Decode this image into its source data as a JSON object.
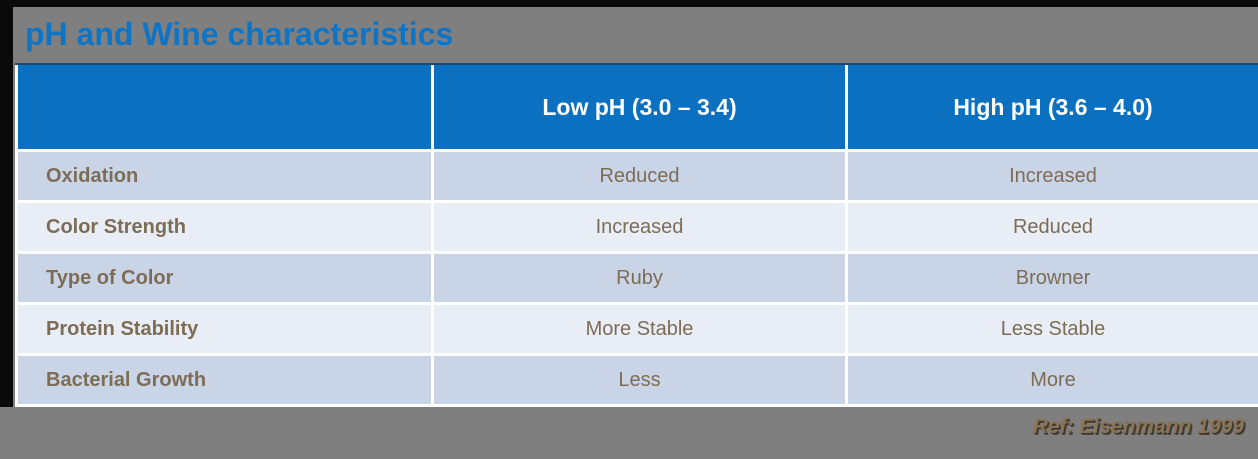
{
  "title": "pH and Wine characteristics",
  "table": {
    "columns": [
      "",
      "Low pH (3.0 – 3.4)",
      "High pH (3.6 – 4.0)"
    ],
    "rows": [
      {
        "label": "Oxidation",
        "low": "Reduced",
        "high": "Increased"
      },
      {
        "label": "Color Strength",
        "low": "Increased",
        "high": "Reduced"
      },
      {
        "label": "Type of Color",
        "low": "Ruby",
        "high": "Browner"
      },
      {
        "label": "Protein Stability",
        "low": "More Stable",
        "high": "Less Stable"
      },
      {
        "label": "Bacterial Growth",
        "low": "Less",
        "high": "More"
      }
    ]
  },
  "reference": "Ref: Eisenmann 1999",
  "colors": {
    "background_gray": "#7f7f7f",
    "frame_black": "#0a0a0a",
    "title_blue": "#0d74c6",
    "header_blue": "#0a70bf",
    "header_top_line_navy": "#1c4875",
    "row_shade_dark": "#c9d4e7",
    "row_shade_light": "#e9edf5",
    "body_text_brown": "#7d6d56",
    "reference_brown": "#8a7355"
  }
}
